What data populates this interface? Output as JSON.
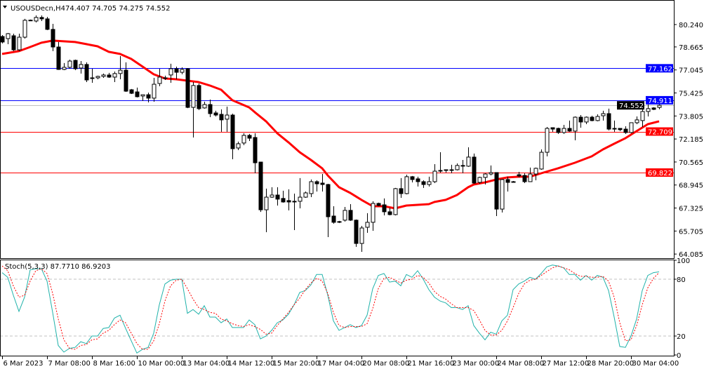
{
  "header": {
    "symbol_label": "USOUSDecn,H4",
    "ohlc_readout": "74.407 74.705 74.275 74.552",
    "collapse_icon": "triangle-down-icon"
  },
  "chart_data": {
    "type": "candlestick",
    "symbol": "USOUSDecn",
    "timeframe": "H4",
    "price_axis": {
      "ylim": [
        64.085,
        80.24
      ],
      "ticks": [
        "80.240",
        "78.665",
        "77.045",
        "75.425",
        "73.805",
        "72.185",
        "70.565",
        "68.945",
        "67.325",
        "65.705",
        "64.085"
      ],
      "position": "right"
    },
    "x_labels": [
      {
        "index": 0,
        "label": "6 Mar 2023"
      },
      {
        "index": 8,
        "label": "7 Mar 08:00"
      },
      {
        "index": 16,
        "label": "8 Mar 16:00"
      },
      {
        "index": 24,
        "label": "10 Mar 00:00"
      },
      {
        "index": 32,
        "label": "13 Mar 04:00"
      },
      {
        "index": 40,
        "label": "14 Mar 12:00"
      },
      {
        "index": 48,
        "label": "15 Mar 20:00"
      },
      {
        "index": 56,
        "label": "17 Mar 04:00"
      },
      {
        "index": 64,
        "label": "20 Mar 08:00"
      },
      {
        "index": 72,
        "label": "21 Mar 16:00"
      },
      {
        "index": 80,
        "label": "23 Mar 00:00"
      },
      {
        "index": 88,
        "label": "24 Mar 08:00"
      },
      {
        "index": 96,
        "label": "27 Mar 12:00"
      },
      {
        "index": 104,
        "label": "28 Mar 20:00"
      },
      {
        "index": 112,
        "label": "30 Mar 04:00"
      }
    ],
    "ohlc": [
      [
        79.4,
        79.5,
        78.91,
        79.01
      ],
      [
        79.25,
        79.65,
        78.86,
        79.6
      ],
      [
        79.45,
        79.6,
        78.37,
        78.46
      ],
      [
        78.46,
        79.6,
        78.37,
        79.35
      ],
      [
        79.35,
        80.64,
        79.25,
        80.54
      ],
      [
        80.54,
        80.59,
        80.49,
        80.55
      ],
      [
        80.49,
        80.88,
        80.39,
        80.74
      ],
      [
        80.74,
        80.88,
        80.49,
        80.64
      ],
      [
        80.64,
        80.78,
        79.85,
        79.9
      ],
      [
        79.9,
        80.29,
        78.37,
        78.66
      ],
      [
        78.66,
        79.01,
        77.05,
        77.08
      ],
      [
        77.08,
        77.53,
        77.03,
        77.23
      ],
      [
        77.23,
        77.77,
        77.13,
        77.67
      ],
      [
        77.72,
        77.77,
        77.03,
        77.13
      ],
      [
        77.18,
        77.67,
        76.79,
        77.43
      ],
      [
        77.43,
        77.58,
        76.19,
        76.34
      ],
      [
        76.49,
        77.13,
        76.14,
        76.44
      ],
      [
        76.49,
        76.64,
        76.39,
        76.59
      ],
      [
        76.59,
        76.79,
        76.49,
        76.69
      ],
      [
        76.69,
        76.84,
        76.49,
        76.54
      ],
      [
        76.54,
        76.93,
        76.19,
        76.79
      ],
      [
        76.79,
        78.02,
        76.39,
        77.03
      ],
      [
        77.03,
        77.58,
        75.5,
        75.55
      ],
      [
        75.65,
        75.7,
        75.35,
        75.4
      ],
      [
        75.5,
        75.8,
        75.11,
        75.16
      ],
      [
        75.21,
        75.3,
        74.86,
        75.3
      ],
      [
        75.3,
        75.45,
        74.76,
        75.06
      ],
      [
        75.06,
        76.49,
        74.81,
        76.04
      ],
      [
        76.09,
        77.13,
        75.9,
        76.54
      ],
      [
        76.49,
        76.64,
        76.34,
        76.49
      ],
      [
        76.69,
        77.48,
        76.14,
        77.13
      ],
      [
        77.13,
        77.28,
        76.39,
        76.88
      ],
      [
        76.88,
        77.23,
        76.74,
        77.08
      ],
      [
        77.13,
        77.18,
        74.36,
        74.41
      ],
      [
        74.41,
        76.19,
        72.29,
        75.95
      ],
      [
        75.95,
        76.09,
        74.22,
        74.32
      ],
      [
        74.37,
        74.81,
        74.32,
        74.61
      ],
      [
        74.61,
        74.96,
        73.72,
        73.97
      ],
      [
        74.02,
        74.17,
        73.77,
        73.87
      ],
      [
        73.92,
        74.27,
        72.69,
        73.53
      ],
      [
        73.58,
        74.46,
        72.69,
        73.87
      ],
      [
        73.87,
        73.97,
        70.76,
        71.5
      ],
      [
        71.55,
        72.0,
        71.4,
        71.85
      ],
      [
        71.9,
        72.59,
        71.75,
        72.44
      ],
      [
        72.44,
        72.54,
        72.04,
        72.24
      ],
      [
        72.29,
        72.59,
        69.77,
        70.51
      ],
      [
        70.56,
        70.56,
        67.05,
        67.2
      ],
      [
        67.2,
        68.69,
        65.62,
        68.09
      ],
      [
        68.09,
        68.79,
        68.04,
        68.24
      ],
      [
        68.24,
        68.79,
        67.5,
        67.95
      ],
      [
        68.0,
        68.54,
        67.7,
        67.75
      ],
      [
        67.85,
        68.64,
        67.16,
        67.75
      ],
      [
        67.8,
        68.34,
        65.77,
        67.75
      ],
      [
        67.8,
        69.43,
        67.3,
        68.09
      ],
      [
        68.09,
        68.49,
        68.04,
        68.39
      ],
      [
        68.34,
        69.33,
        68.09,
        69.18
      ],
      [
        69.18,
        69.28,
        68.49,
        69.03
      ],
      [
        69.08,
        69.72,
        68.49,
        68.98
      ],
      [
        68.98,
        69.03,
        65.28,
        66.71
      ],
      [
        66.76,
        67.45,
        66.22,
        66.32
      ],
      [
        66.37,
        66.42,
        66.27,
        66.32
      ],
      [
        66.47,
        67.4,
        66.37,
        67.16
      ],
      [
        67.16,
        67.6,
        66.42,
        66.47
      ],
      [
        66.47,
        66.52,
        64.59,
        64.83
      ],
      [
        64.83,
        66.07,
        64.24,
        65.92
      ],
      [
        65.97,
        66.96,
        65.58,
        66.32
      ],
      [
        66.32,
        67.8,
        65.72,
        67.65
      ],
      [
        67.65,
        67.7,
        67.45,
        67.5
      ],
      [
        67.55,
        68.0,
        66.81,
        67.06
      ],
      [
        67.06,
        67.35,
        66.81,
        66.86
      ],
      [
        66.86,
        68.74,
        66.81,
        68.69
      ],
      [
        68.69,
        69.43,
        68.04,
        68.34
      ],
      [
        68.34,
        69.67,
        68.29,
        69.53
      ],
      [
        69.53,
        69.58,
        69.13,
        69.33
      ],
      [
        69.38,
        69.53,
        68.84,
        69.18
      ],
      [
        69.18,
        69.28,
        68.74,
        68.98
      ],
      [
        68.98,
        69.53,
        68.84,
        69.18
      ],
      [
        69.18,
        70.41,
        69.08,
        69.92
      ],
      [
        69.97,
        71.25,
        69.82,
        69.92
      ],
      [
        70.02,
        70.02,
        69.82,
        69.97
      ],
      [
        70.02,
        70.37,
        69.77,
        69.97
      ],
      [
        70.02,
        70.46,
        69.97,
        70.32
      ],
      [
        70.32,
        70.71,
        69.77,
        70.32
      ],
      [
        70.27,
        71.6,
        70.22,
        70.91
      ],
      [
        70.91,
        71.16,
        69.03,
        69.08
      ],
      [
        69.13,
        69.53,
        69.03,
        69.48
      ],
      [
        69.48,
        69.77,
        68.98,
        69.72
      ],
      [
        69.72,
        70.32,
        69.62,
        69.82
      ],
      [
        69.82,
        69.82,
        66.76,
        67.25
      ],
      [
        67.25,
        69.38,
        67.01,
        69.33
      ],
      [
        69.33,
        69.53,
        68.49,
        69.13
      ],
      [
        69.18,
        69.23,
        69.13,
        69.18
      ],
      [
        69.67,
        69.87,
        69.48,
        69.58
      ],
      [
        69.62,
        69.77,
        69.08,
        69.18
      ],
      [
        69.18,
        70.17,
        69.18,
        69.72
      ],
      [
        69.72,
        70.17,
        69.28,
        70.12
      ],
      [
        70.07,
        71.45,
        70.02,
        71.25
      ],
      [
        71.25,
        73.03,
        70.96,
        72.93
      ],
      [
        72.98,
        72.98,
        72.69,
        72.88
      ],
      [
        72.93,
        72.98,
        72.54,
        72.64
      ],
      [
        72.64,
        73.18,
        72.54,
        72.93
      ],
      [
        72.93,
        73.48,
        72.69,
        72.74
      ],
      [
        72.74,
        73.77,
        72.09,
        73.72
      ],
      [
        73.72,
        73.87,
        72.98,
        73.38
      ],
      [
        73.38,
        73.77,
        73.23,
        73.72
      ],
      [
        73.72,
        73.82,
        73.43,
        73.48
      ],
      [
        73.48,
        73.92,
        73.43,
        73.77
      ],
      [
        73.82,
        74.17,
        73.48,
        73.97
      ],
      [
        73.97,
        74.32,
        72.79,
        72.88
      ],
      [
        72.93,
        73.48,
        72.69,
        72.93
      ],
      [
        72.93,
        72.93,
        72.74,
        72.84
      ],
      [
        72.88,
        73.08,
        72.54,
        72.64
      ],
      [
        72.64,
        73.33,
        72.59,
        73.33
      ],
      [
        73.33,
        73.77,
        73.23,
        73.53
      ],
      [
        73.48,
        74.32,
        73.03,
        74.12
      ],
      [
        74.12,
        74.61,
        73.77,
        74.32
      ],
      [
        74.37,
        74.42,
        74.22,
        74.27
      ],
      [
        74.407,
        74.705,
        74.275,
        74.552
      ]
    ],
    "moving_average": {
      "color": "#ff0000",
      "points": [
        [
          0,
          78.17
        ],
        [
          3,
          78.37
        ],
        [
          5,
          78.66
        ],
        [
          7,
          78.96
        ],
        [
          9,
          79.11
        ],
        [
          11,
          79.06
        ],
        [
          13,
          79.01
        ],
        [
          15,
          78.86
        ],
        [
          17,
          78.71
        ],
        [
          19,
          78.32
        ],
        [
          21,
          78.17
        ],
        [
          23,
          77.82
        ],
        [
          25,
          77.28
        ],
        [
          27,
          76.74
        ],
        [
          29,
          76.44
        ],
        [
          31,
          76.39
        ],
        [
          33,
          76.29
        ],
        [
          35,
          76.19
        ],
        [
          37,
          75.95
        ],
        [
          39,
          75.65
        ],
        [
          41,
          74.91
        ],
        [
          44,
          74.41
        ],
        [
          45,
          74.07
        ],
        [
          47,
          73.43
        ],
        [
          49,
          72.59
        ],
        [
          51,
          71.95
        ],
        [
          53,
          71.25
        ],
        [
          55,
          70.71
        ],
        [
          57,
          70.12
        ],
        [
          58,
          69.62
        ],
        [
          60,
          68.79
        ],
        [
          62,
          68.39
        ],
        [
          64,
          67.9
        ],
        [
          66,
          67.45
        ],
        [
          68,
          67.45
        ],
        [
          70,
          67.3
        ],
        [
          72,
          67.5
        ],
        [
          74,
          67.55
        ],
        [
          76,
          67.6
        ],
        [
          77,
          67.75
        ],
        [
          79,
          67.9
        ],
        [
          81,
          68.24
        ],
        [
          83,
          68.79
        ],
        [
          84,
          68.98
        ],
        [
          86,
          69.13
        ],
        [
          88,
          69.33
        ],
        [
          90,
          69.48
        ],
        [
          92,
          69.53
        ],
        [
          94,
          69.53
        ],
        [
          96,
          69.77
        ],
        [
          99,
          70.12
        ],
        [
          102,
          70.51
        ],
        [
          105,
          70.96
        ],
        [
          107,
          71.45
        ],
        [
          109,
          71.85
        ],
        [
          111,
          72.24
        ],
        [
          113,
          72.74
        ],
        [
          115,
          73.23
        ],
        [
          117,
          73.43
        ]
      ]
    },
    "levels": [
      {
        "price": 77.162,
        "label": "77.162",
        "color": "#0000ff"
      },
      {
        "price": 74.911,
        "label": "74.911",
        "color": "#0000ff"
      },
      {
        "price": 72.709,
        "label": "72.709",
        "color": "#ff0000"
      },
      {
        "price": 69.822,
        "label": "69.822",
        "color": "#ff0000"
      }
    ],
    "bid_line": {
      "price": 74.552,
      "label": "74.552",
      "color": "#c0c0c0",
      "label_bg": "#000000"
    },
    "stochastic": {
      "label": "Stoch(5,3,3) 87.7710 86.9203",
      "ylim": [
        0,
        100
      ],
      "ticks": [
        "100",
        "80",
        "20",
        "0"
      ],
      "levels": [
        80,
        20
      ],
      "k_color": "#20b2aa",
      "d_color": "#ff0000",
      "k": [
        87,
        82,
        63,
        46,
        61,
        90,
        91,
        91,
        78,
        45,
        10,
        3,
        7,
        8,
        14,
        12,
        20,
        20,
        28,
        29,
        39,
        42,
        28,
        15,
        2,
        6,
        8,
        23,
        53,
        75,
        79,
        80,
        80,
        44,
        48,
        43,
        52,
        40,
        40,
        34,
        38,
        29,
        29,
        29,
        37,
        32,
        17,
        20,
        26,
        34,
        37,
        43,
        53,
        66,
        68,
        74,
        85,
        85,
        63,
        36,
        26,
        29,
        32,
        29,
        31,
        42,
        70,
        84,
        86,
        77,
        78,
        73,
        85,
        82,
        89,
        80,
        69,
        61,
        57,
        55,
        50,
        50,
        48,
        52,
        31,
        23,
        16,
        24,
        22,
        36,
        42,
        69,
        75,
        78,
        82,
        80,
        86,
        93,
        95,
        94,
        92,
        85,
        85,
        79,
        84,
        79,
        84,
        82,
        68,
        40,
        9,
        8,
        20,
        38,
        68,
        84,
        87,
        87.771
      ],
      "d": [
        94,
        89,
        73,
        61,
        63,
        78,
        89,
        91,
        86,
        65,
        38,
        16,
        7,
        6,
        10,
        11,
        16,
        17,
        23,
        26,
        32,
        37,
        34,
        23,
        12,
        6,
        6,
        15,
        33,
        57,
        73,
        79,
        80,
        70,
        59,
        50,
        48,
        45,
        44,
        38,
        36,
        33,
        31,
        30,
        32,
        30,
        27,
        22,
        23,
        31,
        38,
        45,
        53,
        60,
        69,
        76,
        81,
        78,
        65,
        45,
        31,
        29,
        30,
        30,
        30,
        33,
        49,
        70,
        81,
        82,
        79,
        76,
        79,
        80,
        84,
        82,
        76,
        67,
        62,
        59,
        54,
        50,
        50,
        50,
        47,
        37,
        26,
        21,
        21,
        26,
        36,
        50,
        65,
        75,
        79,
        80,
        84,
        88,
        92,
        94,
        92,
        90,
        86,
        83,
        83,
        82,
        82,
        83,
        78,
        61,
        34,
        15,
        16,
        31,
        53,
        71,
        81,
        86.9203
      ]
    }
  }
}
